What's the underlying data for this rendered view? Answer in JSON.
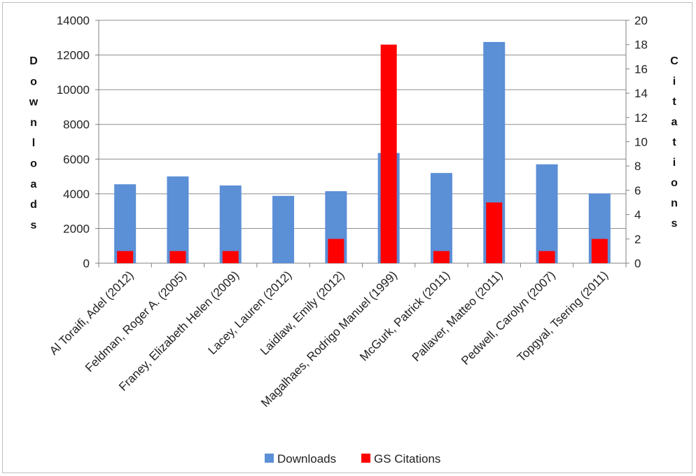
{
  "chart_data": {
    "type": "bar",
    "categories": [
      "Al Toraifi, Adel (2012)",
      "Feldman, Roger A. (2005)",
      "Franey, Elizabeth Helen (2009)",
      "Lacey, Lauren (2012)",
      "Laidlaw, Emily (2012)",
      "Magalhaes, Rodrigo Manuel (1999)",
      "McGurk, Patrick (2011)",
      "Pallaver, Matteo (2011)",
      "Pedwell, Carolyn (2007)",
      "Topgyal, Tsering (2011)"
    ],
    "series": [
      {
        "name": "Downloads",
        "axis": "left",
        "color": "#5b8fd6",
        "values": [
          4550,
          5000,
          4480,
          3880,
          4150,
          6350,
          5200,
          12750,
          5700,
          4020
        ]
      },
      {
        "name": "GS Citations",
        "axis": "right",
        "color": "#ff0000",
        "values": [
          1,
          1,
          1,
          0,
          2,
          18,
          1,
          5,
          1,
          2
        ]
      }
    ],
    "ylabel": "Downloads",
    "y2label": "Citations",
    "ylim": [
      0,
      14000
    ],
    "y2lim": [
      0,
      20
    ],
    "yticks": [
      "0",
      "2000",
      "4000",
      "6000",
      "8000",
      "10000",
      "12000",
      "14000"
    ],
    "y2ticks": [
      "0",
      "2",
      "4",
      "6",
      "8",
      "10",
      "12",
      "14",
      "16",
      "18",
      "20"
    ],
    "grid": true,
    "legend": "bottom"
  }
}
